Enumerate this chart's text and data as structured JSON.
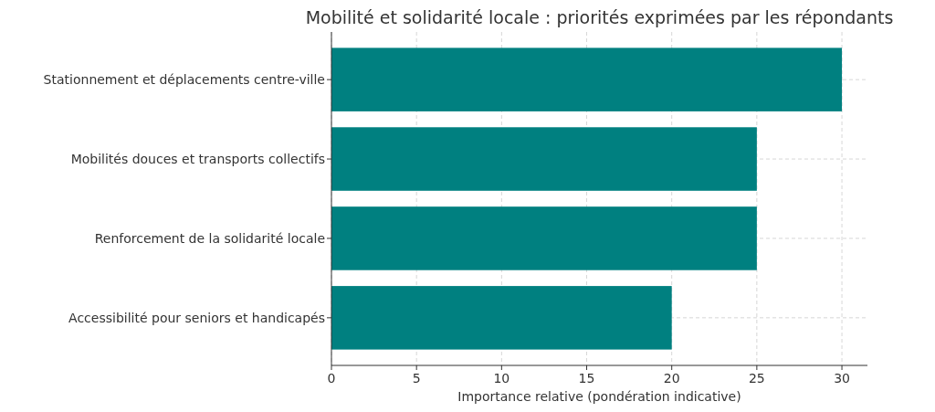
{
  "chart_data": {
    "type": "bar",
    "orientation": "horizontal",
    "title": "Mobilité et solidarité locale : priorités exprimées par les répondants",
    "xlabel": "Importance relative (pondération indicative)",
    "categories": [
      "Stationnement et déplacements centre-ville",
      "Mobilités douces et transports collectifs",
      "Renforcement de la solidarité locale",
      "Accessibilité pour seniors et handicapés"
    ],
    "values": [
      30,
      25,
      25,
      20
    ],
    "color": "#008080",
    "xlim": [
      0,
      31.5
    ],
    "xticks": [
      0,
      5,
      10,
      15,
      20,
      25,
      30
    ],
    "grid": true
  }
}
